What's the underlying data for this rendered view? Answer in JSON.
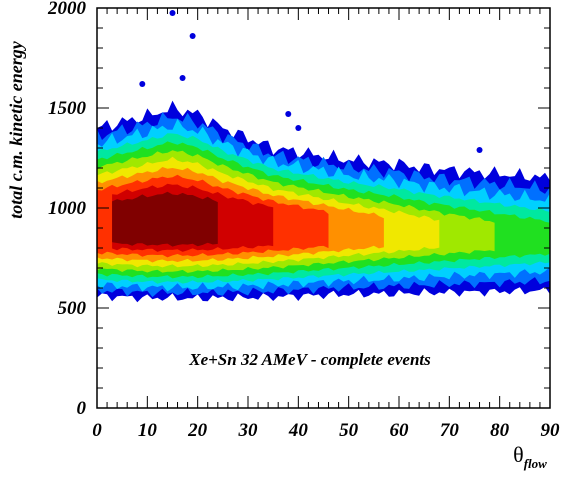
{
  "chart_data": {
    "type": "heatmap",
    "xlabel": "θ",
    "xlabel_subscript": "flow",
    "ylabel": "total c.m. kinetic energy",
    "annotation": "Xe+Sn 32 AMeV - complete events",
    "xlim": [
      0,
      90
    ],
    "ylim": [
      0,
      2000
    ],
    "x_ticks": [
      "0",
      "10",
      "20",
      "30",
      "40",
      "50",
      "60",
      "70",
      "80",
      "90"
    ],
    "y_ticks": [
      "0",
      "500",
      "1000",
      "1500",
      "2000"
    ],
    "grid": false,
    "legend": "none",
    "levels": [
      {
        "level": 1,
        "color": "#0000dd"
      },
      {
        "level": 2,
        "color": "#0070ff"
      },
      {
        "level": 3,
        "color": "#00d0ff"
      },
      {
        "level": 4,
        "color": "#00e8a0"
      },
      {
        "level": 5,
        "color": "#20e020"
      },
      {
        "level": 6,
        "color": "#a0e800"
      },
      {
        "level": 7,
        "color": "#f0e800"
      },
      {
        "level": 8,
        "color": "#ff9000"
      },
      {
        "level": 9,
        "color": "#ff3000"
      },
      {
        "level": 10,
        "color": "#d00000"
      },
      {
        "level": 11,
        "color": "#800000"
      }
    ],
    "ridge": {
      "theta": [
        0,
        5,
        10,
        15,
        20,
        25,
        30,
        35,
        40,
        45,
        50,
        55,
        60,
        65,
        70,
        75,
        80,
        85,
        90
      ],
      "energy_peak": [
        905,
        910,
        915,
        915,
        912,
        908,
        905,
        900,
        895,
        890,
        885,
        880,
        875,
        870,
        865,
        860,
        855,
        850,
        845
      ],
      "energy_upper_edge": [
        1400,
        1430,
        1460,
        1500,
        1470,
        1400,
        1350,
        1300,
        1280,
        1260,
        1240,
        1230,
        1220,
        1200,
        1190,
        1180,
        1170,
        1160,
        1150
      ],
      "energy_lower_edge": [
        560,
        555,
        550,
        550,
        548,
        550,
        552,
        555,
        560,
        565,
        568,
        570,
        572,
        575,
        578,
        580,
        582,
        585,
        588
      ],
      "peak_theta": 14,
      "peak_energy": 915
    },
    "outlier_points": [
      {
        "x": 15,
        "y": 1975
      },
      {
        "x": 19,
        "y": 1860
      },
      {
        "x": 9,
        "y": 1620
      },
      {
        "x": 17,
        "y": 1650
      },
      {
        "x": 38,
        "y": 1470
      },
      {
        "x": 40,
        "y": 1400
      },
      {
        "x": 76,
        "y": 1290
      }
    ]
  }
}
